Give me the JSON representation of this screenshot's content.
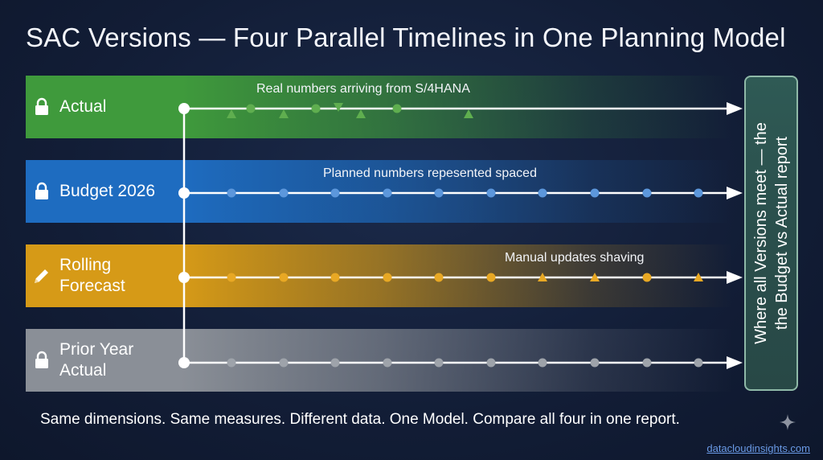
{
  "title": "SAC Versions — Four Parallel Timelines in One Planning Model",
  "lanes": [
    {
      "label_lines": [
        "Actual"
      ],
      "icon": "lock-icon",
      "caption": "Real numbers arriving from S/4HANA",
      "color": "#3f9a3c",
      "marker_color": "#5fae4f",
      "markers": [
        "triangle-up",
        "circle",
        "triangle-up",
        "circle",
        "triangle-down",
        "triangle-up",
        "circle",
        "triangle-up"
      ]
    },
    {
      "label_lines": [
        "Budget 2026"
      ],
      "icon": "lock-icon",
      "caption": "Planned numbers repesented spaced",
      "color": "#1e6cc0",
      "marker_color": "#5c97dc",
      "markers": [
        "circle",
        "circle",
        "circle",
        "circle",
        "circle",
        "circle",
        "circle",
        "circle",
        "circle",
        "circle"
      ]
    },
    {
      "label_lines": [
        "Rolling",
        "Forecast"
      ],
      "icon": "pencil-icon",
      "caption": "Manual updates shaving",
      "color": "#d69a17",
      "marker_color": "#e8a824",
      "markers": [
        "circle",
        "circle",
        "circle",
        "circle",
        "circle",
        "circle",
        "triangle-up",
        "triangle-up",
        "circle",
        "triangle-up"
      ]
    },
    {
      "label_lines": [
        "Prior Year",
        "Actual"
      ],
      "icon": "lock-icon",
      "caption": "",
      "color": "#8a8f97",
      "marker_color": "#9ea3aa",
      "markers": [
        "circle",
        "circle",
        "circle",
        "circle",
        "circle",
        "circle",
        "circle",
        "circle",
        "circle",
        "circle"
      ]
    }
  ],
  "side_box": {
    "line1": "Where all Versions meet —  the",
    "line2": "the Budget vs Actual report"
  },
  "footer": "Same dimensions. Same measures. Different data. One Model. Compare all four in one report.",
  "watermark": "datacloudinsights.com"
}
